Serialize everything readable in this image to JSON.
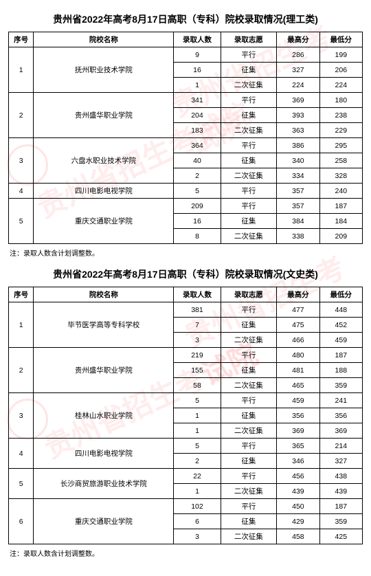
{
  "watermark_text": "贵州省招生考试院",
  "tables": [
    {
      "title": "贵州省2022年高考8月17日高职（专科）院校录取情况(理工类)",
      "headers": {
        "seq": "序号",
        "name": "院校名称",
        "count": "录取人数",
        "type": "录取志愿",
        "high": "最高分",
        "low": "最低分"
      },
      "groups": [
        {
          "seq": "1",
          "name": "抚州职业技术学院",
          "rows": [
            {
              "count": "9",
              "type": "平行",
              "high": "286",
              "low": "199"
            },
            {
              "count": "16",
              "type": "征集",
              "high": "327",
              "low": "206"
            },
            {
              "count": "1",
              "type": "二次征集",
              "high": "224",
              "low": "224"
            }
          ]
        },
        {
          "seq": "2",
          "name": "贵州盛华职业学院",
          "rows": [
            {
              "count": "341",
              "type": "平行",
              "high": "369",
              "low": "180"
            },
            {
              "count": "204",
              "type": "征集",
              "high": "393",
              "low": "238"
            },
            {
              "count": "183",
              "type": "二次征集",
              "high": "363",
              "low": "229"
            }
          ]
        },
        {
          "seq": "3",
          "name": "六盘水职业技术学院",
          "rows": [
            {
              "count": "364",
              "type": "平行",
              "high": "386",
              "low": "295"
            },
            {
              "count": "40",
              "type": "征集",
              "high": "340",
              "low": "258"
            },
            {
              "count": "2",
              "type": "二次征集",
              "high": "334",
              "low": "328"
            }
          ]
        },
        {
          "seq": "4",
          "name": "四川电影电视学院",
          "rows": [
            {
              "count": "5",
              "type": "平行",
              "high": "357",
              "low": "240"
            }
          ]
        },
        {
          "seq": "5",
          "name": "重庆交通职业学院",
          "rows": [
            {
              "count": "209",
              "type": "平行",
              "high": "357",
              "low": "187"
            },
            {
              "count": "16",
              "type": "征集",
              "high": "384",
              "low": "184"
            },
            {
              "count": "8",
              "type": "二次征集",
              "high": "338",
              "low": "209"
            }
          ]
        }
      ],
      "note": "注：录取人数含计划调整数。"
    },
    {
      "title": "贵州省2022年高考8月17日高职（专科）院校录取情况(文史类)",
      "headers": {
        "seq": "序号",
        "name": "院校名称",
        "count": "录取人数",
        "type": "录取志愿",
        "high": "最高分",
        "low": "最低分"
      },
      "groups": [
        {
          "seq": "1",
          "name": "毕节医学高等专科学校",
          "rows": [
            {
              "count": "381",
              "type": "平行",
              "high": "477",
              "low": "448"
            },
            {
              "count": "7",
              "type": "征集",
              "high": "475",
              "low": "452"
            },
            {
              "count": "3",
              "type": "二次征集",
              "high": "466",
              "low": "459"
            }
          ]
        },
        {
          "seq": "2",
          "name": "贵州盛华职业学院",
          "rows": [
            {
              "count": "219",
              "type": "平行",
              "high": "480",
              "low": "187"
            },
            {
              "count": "155",
              "type": "征集",
              "high": "481",
              "low": "188"
            },
            {
              "count": "58",
              "type": "二次征集",
              "high": "465",
              "low": "359"
            }
          ]
        },
        {
          "seq": "3",
          "name": "桂林山水职业学院",
          "rows": [
            {
              "count": "5",
              "type": "平行",
              "high": "459",
              "low": "241"
            },
            {
              "count": "1",
              "type": "征集",
              "high": "356",
              "low": "356"
            },
            {
              "count": "1",
              "type": "二次征集",
              "high": "369",
              "low": "369"
            }
          ]
        },
        {
          "seq": "4",
          "name": "四川电影电视学院",
          "rows": [
            {
              "count": "5",
              "type": "平行",
              "high": "365",
              "low": "214"
            },
            {
              "count": "2",
              "type": "征集",
              "high": "346",
              "low": "327"
            }
          ]
        },
        {
          "seq": "5",
          "name": "长沙商贸旅游职业技术学院",
          "rows": [
            {
              "count": "22",
              "type": "平行",
              "high": "456",
              "low": "438"
            },
            {
              "count": "1",
              "type": "二次征集",
              "high": "439",
              "low": "439"
            }
          ]
        },
        {
          "seq": "6",
          "name": "重庆交通职业学院",
          "rows": [
            {
              "count": "102",
              "type": "平行",
              "high": "450",
              "low": "187"
            },
            {
              "count": "6",
              "type": "征集",
              "high": "429",
              "low": "359"
            },
            {
              "count": "3",
              "type": "二次征集",
              "high": "458",
              "low": "425"
            }
          ]
        }
      ],
      "note": "注：录取人数含计划调整数。"
    }
  ]
}
